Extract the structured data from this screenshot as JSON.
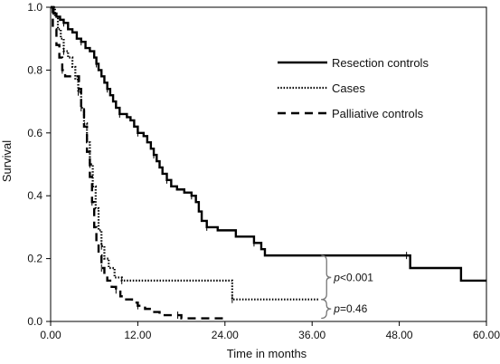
{
  "chart_data": {
    "type": "line",
    "title": "",
    "xlabel": "Time in months",
    "ylabel": "Survival",
    "xlim": [
      0,
      60
    ],
    "ylim": [
      0,
      1.0
    ],
    "x_ticks": [
      "0.00",
      "12.00",
      "24.00",
      "36.00",
      "48.00",
      "60.00"
    ],
    "y_ticks": [
      "0.0",
      "0.2",
      "0.4",
      "0.6",
      "0.8",
      "1.0"
    ],
    "grid": false,
    "legend_position": "top-right",
    "series": [
      {
        "name": "Resection controls",
        "line_style": "solid",
        "points": [
          [
            0,
            1.0
          ],
          [
            0.4,
            0.98
          ],
          [
            0.8,
            0.97
          ],
          [
            1.3,
            0.96
          ],
          [
            1.8,
            0.95
          ],
          [
            2.4,
            0.93
          ],
          [
            3.0,
            0.92
          ],
          [
            3.6,
            0.9
          ],
          [
            4.2,
            0.89
          ],
          [
            4.8,
            0.87
          ],
          [
            5.4,
            0.86
          ],
          [
            6.0,
            0.84
          ],
          [
            6.3,
            0.82
          ],
          [
            6.6,
            0.8
          ],
          [
            7.0,
            0.78
          ],
          [
            7.4,
            0.76
          ],
          [
            7.8,
            0.74
          ],
          [
            8.2,
            0.72
          ],
          [
            8.6,
            0.7
          ],
          [
            9.0,
            0.68
          ],
          [
            9.5,
            0.66
          ],
          [
            10.5,
            0.65
          ],
          [
            11.0,
            0.64
          ],
          [
            11.5,
            0.62
          ],
          [
            12.0,
            0.6
          ],
          [
            12.8,
            0.59
          ],
          [
            13.3,
            0.57
          ],
          [
            13.8,
            0.55
          ],
          [
            14.2,
            0.53
          ],
          [
            14.6,
            0.51
          ],
          [
            15.0,
            0.49
          ],
          [
            15.4,
            0.47
          ],
          [
            16.0,
            0.45
          ],
          [
            16.6,
            0.43
          ],
          [
            17.4,
            0.42
          ],
          [
            18.4,
            0.41
          ],
          [
            19.4,
            0.4
          ],
          [
            20.0,
            0.38
          ],
          [
            20.4,
            0.35
          ],
          [
            20.8,
            0.32
          ],
          [
            21.5,
            0.3
          ],
          [
            23.0,
            0.29
          ],
          [
            24.0,
            0.29
          ],
          [
            25.5,
            0.27
          ],
          [
            28.0,
            0.25
          ],
          [
            29.0,
            0.23
          ],
          [
            29.5,
            0.21
          ],
          [
            38.0,
            0.21
          ],
          [
            49.0,
            0.21
          ],
          [
            49.5,
            0.17
          ],
          [
            56.0,
            0.17
          ],
          [
            56.5,
            0.13
          ],
          [
            60.0,
            0.13
          ]
        ]
      },
      {
        "name": "Cases",
        "line_style": "dotted",
        "points": [
          [
            0,
            1.0
          ],
          [
            0.6,
            0.97
          ],
          [
            1.0,
            0.93
          ],
          [
            1.4,
            0.9
          ],
          [
            1.8,
            0.86
          ],
          [
            2.4,
            0.84
          ],
          [
            3.0,
            0.81
          ],
          [
            3.4,
            0.77
          ],
          [
            3.8,
            0.73
          ],
          [
            4.2,
            0.68
          ],
          [
            4.6,
            0.63
          ],
          [
            5.0,
            0.57
          ],
          [
            5.4,
            0.5
          ],
          [
            5.8,
            0.43
          ],
          [
            6.2,
            0.36
          ],
          [
            6.6,
            0.29
          ],
          [
            7.0,
            0.24
          ],
          [
            7.4,
            0.2
          ],
          [
            8.0,
            0.17
          ],
          [
            8.8,
            0.14
          ],
          [
            9.8,
            0.13
          ],
          [
            13.0,
            0.13
          ],
          [
            18.0,
            0.13
          ],
          [
            24.5,
            0.13
          ],
          [
            25.0,
            0.07
          ],
          [
            30.0,
            0.07
          ],
          [
            37.0,
            0.07
          ]
        ]
      },
      {
        "name": "Palliative controls",
        "line_style": "dashed",
        "points": [
          [
            0,
            1.0
          ],
          [
            0.3,
            0.93
          ],
          [
            0.8,
            0.88
          ],
          [
            1.2,
            0.84
          ],
          [
            1.6,
            0.8
          ],
          [
            2.0,
            0.78
          ],
          [
            3.5,
            0.78
          ],
          [
            3.9,
            0.74
          ],
          [
            4.2,
            0.68
          ],
          [
            4.6,
            0.62
          ],
          [
            5.0,
            0.54
          ],
          [
            5.4,
            0.46
          ],
          [
            5.7,
            0.38
          ],
          [
            6.0,
            0.3
          ],
          [
            6.3,
            0.25
          ],
          [
            6.6,
            0.21
          ],
          [
            7.0,
            0.17
          ],
          [
            7.4,
            0.15
          ],
          [
            7.8,
            0.13
          ],
          [
            8.4,
            0.11
          ],
          [
            9.0,
            0.1
          ],
          [
            9.6,
            0.08
          ],
          [
            10.4,
            0.07
          ],
          [
            11.2,
            0.06
          ],
          [
            12.0,
            0.05
          ],
          [
            13.0,
            0.04
          ],
          [
            14.0,
            0.03
          ],
          [
            15.0,
            0.02
          ],
          [
            17.5,
            0.02
          ],
          [
            18.0,
            0.01
          ],
          [
            24.0,
            0.01
          ]
        ]
      }
    ],
    "annotations": [
      {
        "text": "p<0.001",
        "bracket_between": [
          "Resection controls",
          "Cases"
        ],
        "x": 37.5
      },
      {
        "text": "p=0.46",
        "bracket_between": [
          "Cases",
          "Palliative controls"
        ],
        "x": 37.5
      }
    ]
  }
}
